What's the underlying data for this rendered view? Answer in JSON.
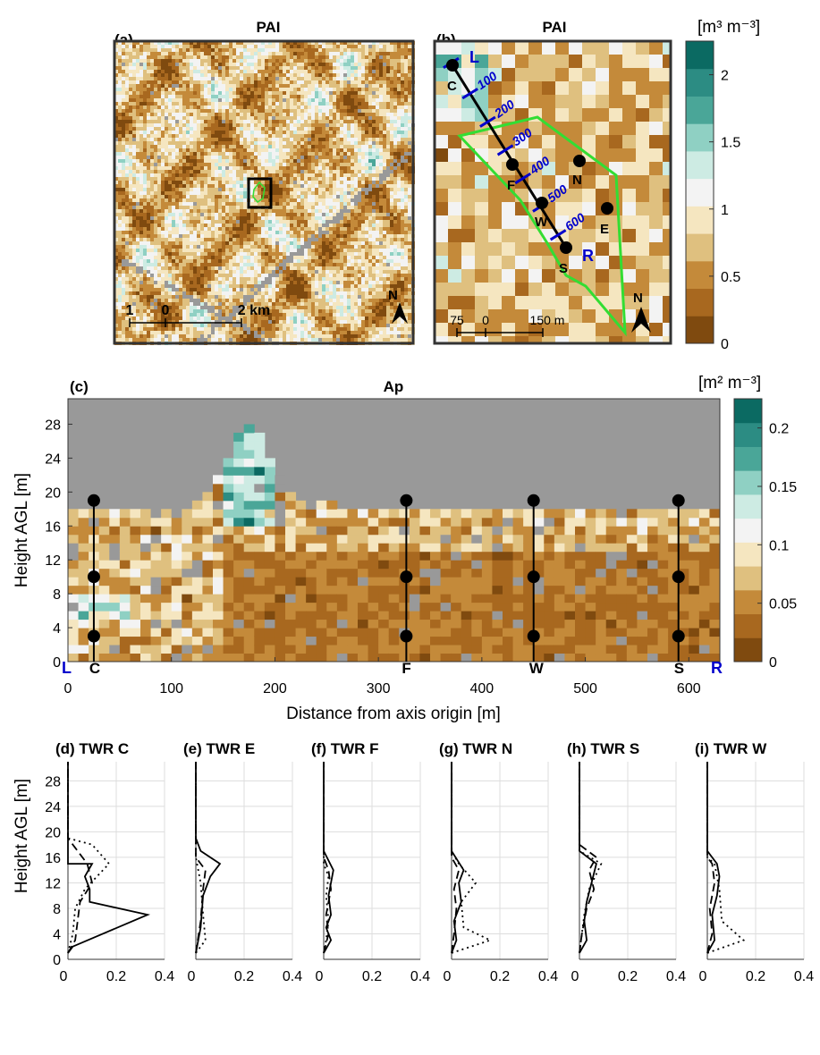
{
  "colors": {
    "nodata": "#999999",
    "brand_scale": [
      "#7f4a0f",
      "#a8681f",
      "#c48a3a",
      "#dfc07f",
      "#f5e6c0",
      "#f3f3f3",
      "#cdebe3",
      "#8fd0c3",
      "#4aa698",
      "#2c8c83",
      "#0b6a62"
    ],
    "transect": "#0000cc",
    "outline": "#33dd33"
  },
  "panel_a": {
    "label": "(a)",
    "title": "PAI",
    "scale_ticks": [
      "1",
      "0",
      "2 km"
    ],
    "north": "N"
  },
  "panel_b": {
    "label": "(b)",
    "title": "PAI",
    "scale_ticks": [
      "75",
      "0",
      "150 m"
    ],
    "north": "N",
    "transect_ends": {
      "left": "L",
      "right": "R"
    },
    "transect_marks": [
      "100",
      "200",
      "300",
      "400",
      "500",
      "600"
    ],
    "towers": [
      "C",
      "F",
      "N",
      "W",
      "E",
      "S"
    ]
  },
  "cbar_b": {
    "unit": "[m³ m⁻³]",
    "ticks": [
      "0",
      "0.5",
      "1",
      "1.5",
      "2"
    ],
    "range": [
      0,
      2.25
    ]
  },
  "panel_c": {
    "label": "(c)",
    "title": "Ap",
    "xlabel": "Distance from axis origin [m]",
    "ylabel": "Height AGL [m]",
    "xticks": [
      "0",
      "100",
      "200",
      "300",
      "400",
      "500",
      "600"
    ],
    "yticks": [
      "0",
      "4",
      "8",
      "12",
      "16",
      "20",
      "24",
      "28"
    ],
    "ends": {
      "left": "L",
      "right": "R"
    },
    "towers": [
      {
        "name": "C",
        "x": 25
      },
      {
        "name": "F",
        "x": 327
      },
      {
        "name": "W",
        "x": 450
      },
      {
        "name": "S",
        "x": 590
      }
    ],
    "sensor_heights": [
      3,
      10,
      19
    ]
  },
  "cbar_c": {
    "unit": "[m² m⁻³]",
    "ticks": [
      "0",
      "0.05",
      "0.1",
      "0.15",
      "0.2"
    ],
    "range": [
      0,
      0.225
    ]
  },
  "profiles_common": {
    "ylabel": "Height AGL [m]",
    "xticks": [
      "0",
      "0.2",
      "0.4"
    ],
    "yticks": [
      "0",
      "4",
      "8",
      "12",
      "16",
      "20",
      "24",
      "28"
    ]
  },
  "chart_data": [
    {
      "type": "heatmap",
      "title": "PAI",
      "description_label": "(a)",
      "values_range": [
        0,
        2.25
      ]
    },
    {
      "type": "heatmap",
      "title": "PAI",
      "description_label": "(b)",
      "values_range": [
        0,
        2.25
      ]
    },
    {
      "type": "heatmap",
      "title": "Ap",
      "description_label": "(c)",
      "xlabel": "Distance from axis origin [m]",
      "ylabel": "Height AGL [m]",
      "xlim": [
        0,
        630
      ],
      "ylim": [
        0,
        31
      ],
      "values_range": [
        0,
        0.225
      ]
    },
    {
      "type": "line",
      "label": "(d)",
      "title": "TWR C",
      "xlim": [
        0,
        0.4
      ],
      "ylim": [
        0,
        31
      ],
      "series": [
        {
          "style": "solid",
          "points": [
            [
              0,
              1
            ],
            [
              0.02,
              2
            ],
            [
              0.33,
              7
            ],
            [
              0.09,
              9
            ],
            [
              0.09,
              11
            ],
            [
              0.07,
              13
            ],
            [
              0.1,
              15
            ],
            [
              0,
              15
            ],
            [
              0,
              31
            ]
          ]
        },
        {
          "style": "dashed",
          "points": [
            [
              0,
              1
            ],
            [
              0.03,
              3
            ],
            [
              0.04,
              6
            ],
            [
              0.05,
              9
            ],
            [
              0.1,
              12
            ],
            [
              0.08,
              15
            ],
            [
              0,
              19
            ],
            [
              0,
              31
            ]
          ]
        },
        {
          "style": "dotted",
          "points": [
            [
              0,
              1
            ],
            [
              0.02,
              4
            ],
            [
              0.03,
              8
            ],
            [
              0.07,
              11
            ],
            [
              0.17,
              15
            ],
            [
              0.1,
              18
            ],
            [
              0,
              19
            ],
            [
              0,
              31
            ]
          ]
        }
      ]
    },
    {
      "type": "line",
      "label": "(e)",
      "title": "TWR E",
      "xlim": [
        0,
        0.4
      ],
      "ylim": [
        0,
        31
      ],
      "series": [
        {
          "style": "solid",
          "points": [
            [
              0,
              1
            ],
            [
              0.02,
              5
            ],
            [
              0.03,
              10
            ],
            [
              0.06,
              13
            ],
            [
              0.1,
              15
            ],
            [
              0.02,
              17
            ],
            [
              0,
              19
            ],
            [
              0,
              31
            ]
          ]
        },
        {
          "style": "dashed",
          "points": [
            [
              0,
              1
            ],
            [
              0.02,
              6
            ],
            [
              0.03,
              11
            ],
            [
              0.04,
              14
            ],
            [
              0,
              16
            ],
            [
              0,
              31
            ]
          ]
        },
        {
          "style": "dotted",
          "points": [
            [
              0,
              1
            ],
            [
              0.04,
              3
            ],
            [
              0.03,
              7
            ],
            [
              0.02,
              12
            ],
            [
              0,
              16
            ],
            [
              0,
              31
            ]
          ]
        }
      ]
    },
    {
      "type": "line",
      "label": "(f)",
      "title": "TWR F",
      "xlim": [
        0,
        0.4
      ],
      "ylim": [
        0,
        31
      ],
      "series": [
        {
          "style": "solid",
          "points": [
            [
              0,
              1
            ],
            [
              0.03,
              3
            ],
            [
              0.01,
              5
            ],
            [
              0.03,
              7
            ],
            [
              0.02,
              10
            ],
            [
              0.03,
              12
            ],
            [
              0.04,
              14
            ],
            [
              0,
              17
            ],
            [
              0,
              31
            ]
          ]
        },
        {
          "style": "dashed",
          "points": [
            [
              0,
              1
            ],
            [
              0.02,
              4
            ],
            [
              0.01,
              7
            ],
            [
              0.03,
              11
            ],
            [
              0.02,
              14
            ],
            [
              0,
              16
            ],
            [
              0,
              31
            ]
          ]
        },
        {
          "style": "dotted",
          "points": [
            [
              0,
              1
            ],
            [
              0.01,
              3
            ],
            [
              0.02,
              6
            ],
            [
              0.01,
              10
            ],
            [
              0.02,
              13
            ],
            [
              0,
              15
            ],
            [
              0,
              31
            ]
          ]
        }
      ]
    },
    {
      "type": "line",
      "label": "(g)",
      "title": "TWR N",
      "xlim": [
        0,
        0.4
      ],
      "ylim": [
        0,
        31
      ],
      "series": [
        {
          "style": "solid",
          "points": [
            [
              0,
              1
            ],
            [
              0.02,
              3
            ],
            [
              0.01,
              6
            ],
            [
              0.04,
              9
            ],
            [
              0.03,
              12
            ],
            [
              0.05,
              14
            ],
            [
              0,
              17
            ],
            [
              0,
              31
            ]
          ]
        },
        {
          "style": "dashed",
          "points": [
            [
              0,
              1
            ],
            [
              0.01,
              4
            ],
            [
              0.02,
              8
            ],
            [
              0.01,
              11
            ],
            [
              0.03,
              14
            ],
            [
              0,
              16
            ],
            [
              0,
              31
            ]
          ]
        },
        {
          "style": "dotted",
          "points": [
            [
              0,
              1
            ],
            [
              0.16,
              3
            ],
            [
              0.05,
              5
            ],
            [
              0.04,
              9
            ],
            [
              0.1,
              12
            ],
            [
              0.03,
              15
            ],
            [
              0,
              17
            ],
            [
              0,
              31
            ]
          ]
        }
      ]
    },
    {
      "type": "line",
      "label": "(h)",
      "title": "TWR S",
      "xlim": [
        0,
        0.4
      ],
      "ylim": [
        0,
        31
      ],
      "series": [
        {
          "style": "solid",
          "points": [
            [
              0,
              1
            ],
            [
              0.03,
              3
            ],
            [
              0.02,
              6
            ],
            [
              0.03,
              9
            ],
            [
              0.05,
              12
            ],
            [
              0.07,
              15
            ],
            [
              0,
              17
            ],
            [
              0,
              31
            ]
          ]
        },
        {
          "style": "dashed",
          "points": [
            [
              0,
              1
            ],
            [
              0.01,
              4
            ],
            [
              0.03,
              8
            ],
            [
              0.06,
              11
            ],
            [
              0.04,
              14
            ],
            [
              0.07,
              16
            ],
            [
              0,
              18
            ],
            [
              0,
              31
            ]
          ]
        },
        {
          "style": "dotted",
          "points": [
            [
              0,
              1
            ],
            [
              0.01,
              4
            ],
            [
              0.02,
              7
            ],
            [
              0.04,
              11
            ],
            [
              0.09,
              15
            ],
            [
              0,
              17
            ],
            [
              0,
              31
            ]
          ]
        }
      ]
    },
    {
      "type": "line",
      "label": "(i)",
      "title": "TWR W",
      "xlim": [
        0,
        0.4
      ],
      "ylim": [
        0,
        31
      ],
      "series": [
        {
          "style": "solid",
          "points": [
            [
              0,
              1
            ],
            [
              0.03,
              3
            ],
            [
              0.02,
              7
            ],
            [
              0.04,
              10
            ],
            [
              0.05,
              13
            ],
            [
              0.04,
              15
            ],
            [
              0,
              17
            ],
            [
              0,
              31
            ]
          ]
        },
        {
          "style": "dashed",
          "points": [
            [
              0,
              1
            ],
            [
              0.02,
              4
            ],
            [
              0.01,
              8
            ],
            [
              0.03,
              12
            ],
            [
              0.02,
              15
            ],
            [
              0,
              16
            ],
            [
              0,
              31
            ]
          ]
        },
        {
          "style": "dotted",
          "points": [
            [
              0,
              1
            ],
            [
              0.15,
              3
            ],
            [
              0.06,
              6
            ],
            [
              0.05,
              11
            ],
            [
              0.03,
              15
            ],
            [
              0,
              16
            ],
            [
              0,
              31
            ]
          ]
        }
      ]
    }
  ]
}
